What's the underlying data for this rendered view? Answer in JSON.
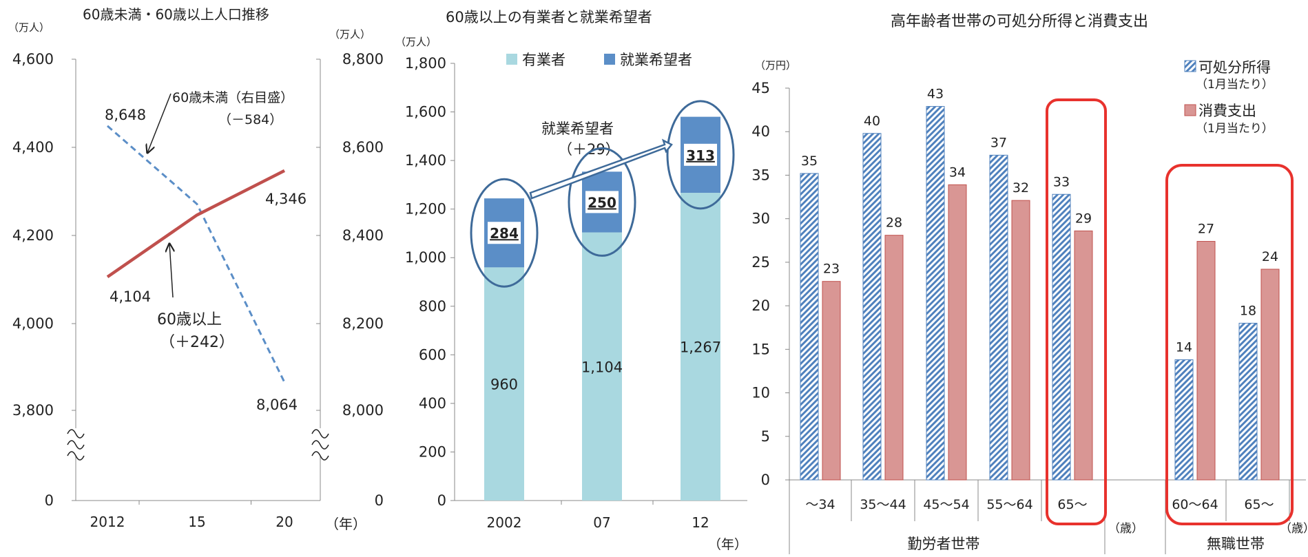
{
  "chart_data": [
    {
      "type": "line",
      "title": "60歳未満・60歳以上人口推移",
      "left_unit": "（万人）",
      "right_unit": "（万人）",
      "x_unit": "（年）",
      "categories": [
        "2012",
        "15",
        "20"
      ],
      "y_left_ticks": [
        "4,600",
        "4,400",
        "4,200",
        "4,000",
        "3,800",
        "0"
      ],
      "y_right_ticks": [
        "8,800",
        "8,600",
        "8,400",
        "8,200",
        "8,000",
        "0"
      ],
      "y_left_range": [
        3800,
        4600
      ],
      "y_right_range": [
        8000,
        8800
      ],
      "axis_break": true,
      "series": [
        {
          "name": "60歳未満（右目盛）",
          "change": "（－584）",
          "axis": "right",
          "style": "dashed",
          "color": "#5b8ec7",
          "years": [
            2012,
            2015,
            2020
          ],
          "values": [
            8648,
            8470,
            8064
          ],
          "labels": [
            "8,648",
            "",
            "8,064"
          ]
        },
        {
          "name": "60歳以上",
          "change": "（＋242）",
          "axis": "left",
          "style": "solid",
          "color": "#c0504d",
          "years": [
            2012,
            2015,
            2020
          ],
          "values": [
            4104,
            4245,
            4346
          ],
          "labels": [
            "4,104",
            "",
            "4,346"
          ]
        }
      ]
    },
    {
      "type": "bar",
      "stacked": true,
      "title": "60歳以上の有業者と就業希望者",
      "y_unit": "（万人）",
      "x_unit": "（年）",
      "categories": [
        "2002",
        "07",
        "12"
      ],
      "y_range": [
        0,
        1800
      ],
      "y_ticks": [
        "1,800",
        "1,600",
        "1,400",
        "1,200",
        "1,000",
        "800",
        "600",
        "400",
        "200",
        "0"
      ],
      "legend": [
        "有業者",
        "就業希望者"
      ],
      "series": [
        {
          "name": "有業者",
          "color": "#a9d8e0",
          "values": [
            960,
            1104,
            1267
          ],
          "labels": [
            "960",
            "1,104",
            "1,267"
          ]
        },
        {
          "name": "就業希望者",
          "color": "#5b8ec7",
          "values": [
            284,
            250,
            313
          ],
          "labels": [
            "284",
            "250",
            "313"
          ]
        }
      ],
      "annotation": {
        "label": "就業希望者",
        "change": "（＋29）"
      }
    },
    {
      "type": "bar",
      "title": "高年齢者世帯の可処分所得と消費支出",
      "y_unit": "（万円）",
      "y_range": [
        0,
        45
      ],
      "y_ticks": [
        "45",
        "40",
        "35",
        "30",
        "25",
        "20",
        "15",
        "10",
        "5",
        "0"
      ],
      "legend": [
        {
          "name": "可処分所得",
          "sub": "（1月当たり）"
        },
        {
          "name": "消費支出",
          "sub": "（1月当たり）"
        }
      ],
      "groups": [
        {
          "name": "勤労者世帯",
          "categories": [
            "～34",
            "35～44",
            "45～54",
            "55～64",
            "65～"
          ],
          "disposable": [
            35,
            40,
            43,
            37,
            33
          ],
          "consumption": [
            23,
            28,
            34,
            32,
            29
          ],
          "disposable_exact": [
            35.2,
            39.8,
            42.9,
            37.3,
            32.8
          ],
          "consumption_exact": [
            22.8,
            28.1,
            33.9,
            32.1,
            28.6
          ]
        },
        {
          "name": "無職世帯",
          "categories": [
            "60～64",
            "65～"
          ],
          "disposable": [
            14,
            18
          ],
          "consumption": [
            27,
            24
          ],
          "disposable_exact": [
            13.8,
            18.0
          ],
          "consumption_exact": [
            27.4,
            24.2
          ]
        }
      ],
      "age_unit": "（歳）",
      "highlight_color": "#e8322d",
      "disposable_color": "#4f81bd",
      "consumption_color": "#d99694"
    }
  ]
}
